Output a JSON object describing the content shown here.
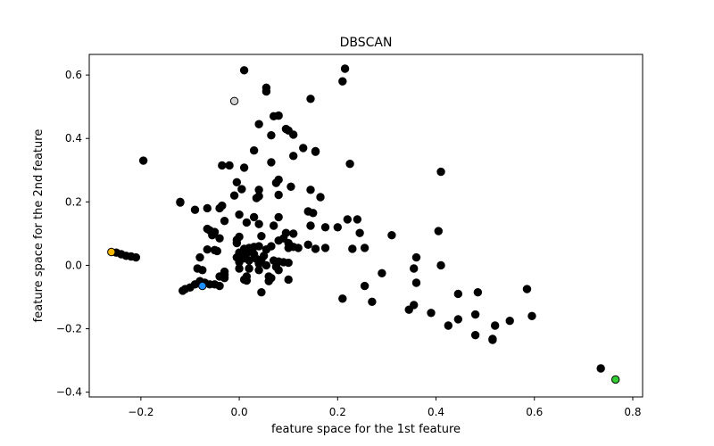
{
  "chart_data": {
    "type": "scatter",
    "title": "DBSCAN",
    "xlabel": "feature space for the 1st feature",
    "ylabel": "feature space for the 2nd feature",
    "xlim": [
      -0.305,
      0.82
    ],
    "ylim": [
      -0.415,
      0.665
    ],
    "xticks": [
      -0.2,
      0.0,
      0.2,
      0.4,
      0.6,
      0.8
    ],
    "xtick_labels": [
      "−0.2",
      "0.0",
      "0.2",
      "0.4",
      "0.6",
      "0.8"
    ],
    "yticks": [
      -0.4,
      -0.2,
      0.0,
      0.2,
      0.4,
      0.6
    ],
    "ytick_labels": [
      "−0.4",
      "−0.2",
      "0.0",
      "0.2",
      "0.4",
      "0.6"
    ],
    "grid": false,
    "series": [
      {
        "color": "#000000",
        "points": [
          [
            0.01,
            0.615
          ],
          [
            0.215,
            0.62
          ],
          [
            0.21,
            0.58
          ],
          [
            0.055,
            0.56
          ],
          [
            0.055,
            0.548
          ],
          [
            0.145,
            0.525
          ],
          [
            0.07,
            0.47
          ],
          [
            0.08,
            0.472
          ],
          [
            0.04,
            0.445
          ],
          [
            0.095,
            0.43
          ],
          [
            0.1,
            0.425
          ],
          [
            0.11,
            0.412
          ],
          [
            0.065,
            0.41
          ],
          [
            0.13,
            0.37
          ],
          [
            0.155,
            0.36
          ],
          [
            0.155,
            0.358
          ],
          [
            0.03,
            0.362
          ],
          [
            0.11,
            0.345
          ],
          [
            -0.195,
            0.33
          ],
          [
            0.065,
            0.325
          ],
          [
            -0.035,
            0.315
          ],
          [
            -0.02,
            0.315
          ],
          [
            0.01,
            0.308
          ],
          [
            0.225,
            0.32
          ],
          [
            0.41,
            0.295
          ],
          [
            0.08,
            0.27
          ],
          [
            0.075,
            0.26
          ],
          [
            -0.005,
            0.262
          ],
          [
            0.105,
            0.248
          ],
          [
            0.005,
            0.24
          ],
          [
            0.04,
            0.238
          ],
          [
            0.145,
            0.238
          ],
          [
            -0.01,
            0.22
          ],
          [
            0.04,
            0.218
          ],
          [
            0.035,
            0.212
          ],
          [
            0.08,
            0.222
          ],
          [
            0.165,
            0.215
          ],
          [
            -0.12,
            0.2
          ],
          [
            -0.12,
            0.198
          ],
          [
            -0.035,
            0.188
          ],
          [
            -0.04,
            0.18
          ],
          [
            -0.065,
            0.18
          ],
          [
            -0.09,
            0.175
          ],
          [
            0.14,
            0.17
          ],
          [
            0.15,
            0.165
          ],
          [
            0.0,
            0.16
          ],
          [
            0.03,
            0.152
          ],
          [
            0.08,
            0.152
          ],
          [
            0.22,
            0.145
          ],
          [
            0.24,
            0.145
          ],
          [
            -0.03,
            0.14
          ],
          [
            0.015,
            0.135
          ],
          [
            0.04,
            0.13
          ],
          [
            0.07,
            0.125
          ],
          [
            0.145,
            0.125
          ],
          [
            0.175,
            0.12
          ],
          [
            0.2,
            0.12
          ],
          [
            -0.065,
            0.115
          ],
          [
            -0.06,
            0.11
          ],
          [
            -0.05,
            0.105
          ],
          [
            -0.055,
            0.095
          ],
          [
            0.095,
            0.102
          ],
          [
            0.11,
            0.1
          ],
          [
            0.245,
            0.102
          ],
          [
            0.31,
            0.095
          ],
          [
            0.405,
            0.108
          ],
          [
            0.0,
            0.09
          ],
          [
            0.045,
            0.092
          ],
          [
            -0.04,
            0.085
          ],
          [
            -0.005,
            0.08
          ],
          [
            0.09,
            0.085
          ],
          [
            0.08,
            0.078
          ],
          [
            -0.005,
            0.07
          ],
          [
            0.1,
            0.07
          ],
          [
            0.14,
            0.065
          ],
          [
            0.11,
            0.058
          ],
          [
            0.065,
            0.06
          ],
          [
            0.055,
            0.05
          ],
          [
            0.04,
            0.06
          ],
          [
            0.03,
            0.058
          ],
          [
            0.02,
            0.055
          ],
          [
            0.01,
            0.052
          ],
          [
            0.1,
            0.055
          ],
          [
            0.12,
            0.055
          ],
          [
            0.155,
            0.052
          ],
          [
            0.175,
            0.055
          ],
          [
            0.23,
            0.052
          ],
          [
            0.255,
            0.055
          ],
          [
            -0.065,
            0.05
          ],
          [
            -0.05,
            0.048
          ],
          [
            -0.045,
            0.045
          ],
          [
            0.0,
            0.04
          ],
          [
            0.015,
            0.038
          ],
          [
            0.03,
            0.035
          ],
          [
            0.05,
            0.03
          ],
          [
            -0.08,
            0.025
          ],
          [
            -0.005,
            0.025
          ],
          [
            0.01,
            0.022
          ],
          [
            0.035,
            0.02
          ],
          [
            0.045,
            0.018
          ],
          [
            0.02,
            0.015
          ],
          [
            0.0,
            0.01
          ],
          [
            0.07,
            0.015
          ],
          [
            0.08,
            0.012
          ],
          [
            0.09,
            0.01
          ],
          [
            0.1,
            0.008
          ],
          [
            0.36,
            0.025
          ],
          [
            0.04,
            0.005
          ],
          [
            0.055,
            0.0
          ],
          [
            0.075,
            -0.005
          ],
          [
            0.41,
            0.0
          ],
          [
            0.355,
            -0.01
          ],
          [
            -0.085,
            -0.01
          ],
          [
            -0.075,
            -0.015
          ],
          [
            -0.03,
            -0.02
          ],
          [
            -0.03,
            -0.03
          ],
          [
            0.0,
            -0.01
          ],
          [
            0.02,
            -0.01
          ],
          [
            0.04,
            -0.015
          ],
          [
            0.08,
            -0.015
          ],
          [
            -0.04,
            -0.035
          ],
          [
            -0.03,
            -0.04
          ],
          [
            0.015,
            -0.035
          ],
          [
            0.06,
            -0.035
          ],
          [
            0.065,
            -0.04
          ],
          [
            0.1,
            -0.045
          ],
          [
            0.29,
            -0.025
          ],
          [
            0.01,
            -0.045
          ],
          [
            0.015,
            -0.048
          ],
          [
            0.06,
            -0.05
          ],
          [
            -0.08,
            -0.05
          ],
          [
            -0.07,
            -0.055
          ],
          [
            -0.06,
            -0.06
          ],
          [
            -0.05,
            -0.06
          ],
          [
            -0.04,
            -0.065
          ],
          [
            -0.09,
            -0.06
          ],
          [
            -0.1,
            -0.07
          ],
          [
            -0.11,
            -0.075
          ],
          [
            -0.115,
            -0.08
          ],
          [
            0.045,
            -0.085
          ],
          [
            0.36,
            -0.055
          ],
          [
            0.255,
            -0.065
          ],
          [
            0.445,
            -0.09
          ],
          [
            0.485,
            -0.085
          ],
          [
            0.585,
            -0.075
          ],
          [
            0.21,
            -0.105
          ],
          [
            0.27,
            -0.115
          ],
          [
            0.355,
            -0.125
          ],
          [
            0.345,
            -0.14
          ],
          [
            0.39,
            -0.15
          ],
          [
            0.48,
            -0.155
          ],
          [
            0.595,
            -0.16
          ],
          [
            0.445,
            -0.17
          ],
          [
            0.55,
            -0.175
          ],
          [
            0.425,
            -0.19
          ],
          [
            0.52,
            -0.19
          ],
          [
            0.48,
            -0.22
          ],
          [
            0.515,
            -0.235
          ],
          [
            0.515,
            -0.232
          ],
          [
            0.735,
            -0.325
          ],
          [
            -0.25,
            0.04
          ],
          [
            -0.24,
            0.035
          ],
          [
            -0.23,
            0.03
          ],
          [
            -0.22,
            0.028
          ],
          [
            -0.21,
            0.025
          ]
        ]
      },
      {
        "color": "#d3d3d3",
        "points": [
          [
            -0.01,
            0.518
          ]
        ]
      },
      {
        "color": "#f5b800",
        "points": [
          [
            -0.26,
            0.042
          ]
        ]
      },
      {
        "color": "#1e90ff",
        "points": [
          [
            -0.075,
            -0.065
          ]
        ]
      },
      {
        "color": "#32cd32",
        "points": [
          [
            0.765,
            -0.36
          ]
        ]
      }
    ]
  }
}
